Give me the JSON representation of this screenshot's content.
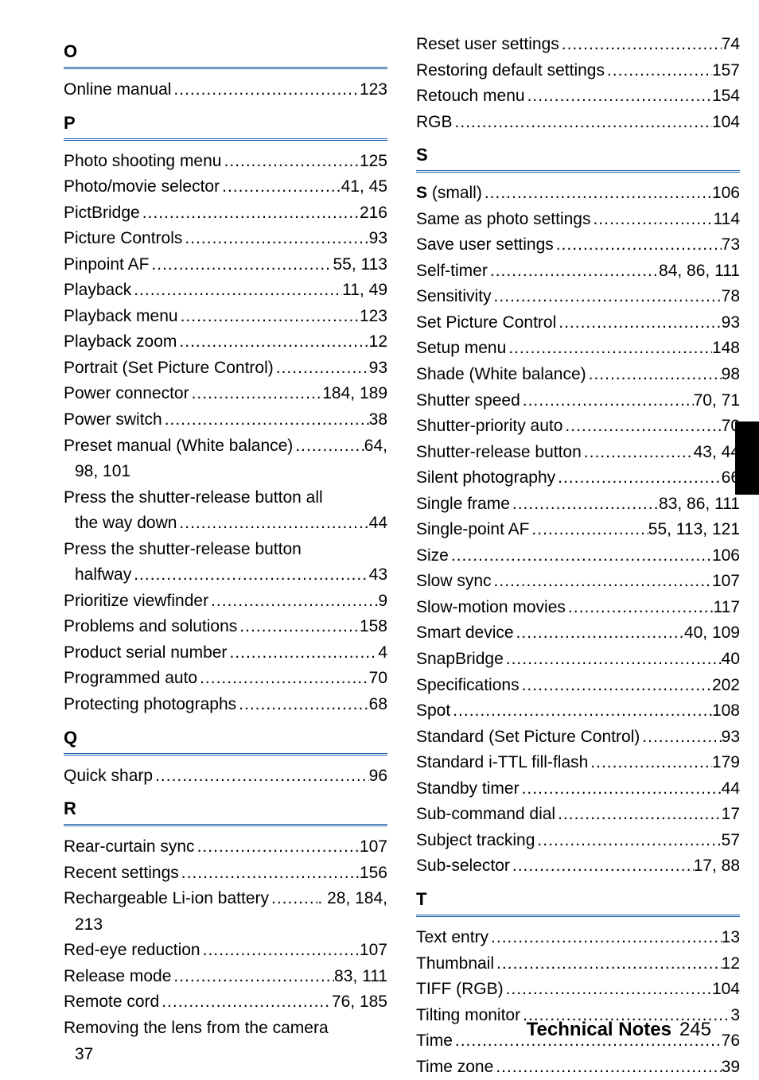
{
  "footer": {
    "title": "Technical Notes",
    "page": "245"
  },
  "left": {
    "sections": [
      {
        "letter": "O",
        "entries": [
          {
            "type": "simple",
            "label": "Online manual",
            "pages": "123"
          }
        ]
      },
      {
        "letter": "P",
        "entries": [
          {
            "type": "simple",
            "label": "Photo shooting menu",
            "pages": "125"
          },
          {
            "type": "simple",
            "label": "Photo/movie selector",
            "pages": "41, 45"
          },
          {
            "type": "simple",
            "label": "PictBridge",
            "pages": "216"
          },
          {
            "type": "simple",
            "label": "Picture Controls",
            "pages": "93"
          },
          {
            "type": "simple",
            "label": "Pinpoint AF",
            "pages": "55, 113"
          },
          {
            "type": "simple",
            "label": "Playback",
            "pages": "11, 49"
          },
          {
            "type": "simple",
            "label": "Playback menu",
            "pages": "123"
          },
          {
            "type": "simple",
            "label": "Playback zoom",
            "pages": "12"
          },
          {
            "type": "simple",
            "label": "Portrait (Set Picture Control)",
            "pages": "93"
          },
          {
            "type": "simple",
            "label": "Power connector",
            "pages": "184, 189"
          },
          {
            "type": "simple",
            "label": "Power switch",
            "pages": "38"
          },
          {
            "type": "multi",
            "label": "Preset manual (White balance)",
            "tail": "64,",
            "continue": "98, 101"
          },
          {
            "type": "noleader",
            "label": "Press the shutter-release button all"
          },
          {
            "type": "simple",
            "label": "the way down",
            "pages": "44",
            "indent": true
          },
          {
            "type": "noleader",
            "label": "Press the shutter-release button"
          },
          {
            "type": "simple",
            "label": "halfway",
            "pages": "43",
            "indent": true
          },
          {
            "type": "simple",
            "label": "Prioritize viewfinder",
            "pages": "9"
          },
          {
            "type": "simple",
            "label": "Problems and solutions",
            "pages": "158"
          },
          {
            "type": "simple",
            "label": "Product serial number",
            "pages": "4"
          },
          {
            "type": "simple",
            "label": "Programmed auto",
            "pages": "70"
          },
          {
            "type": "simple",
            "label": "Protecting photographs",
            "pages": "68"
          }
        ]
      },
      {
        "letter": "Q",
        "entries": [
          {
            "type": "simple",
            "label": "Quick sharp",
            "pages": "96"
          }
        ]
      },
      {
        "letter": "R",
        "entries": [
          {
            "type": "simple",
            "label": "Rear-curtain sync",
            "pages": "107"
          },
          {
            "type": "simple",
            "label": "Recent settings",
            "pages": "156"
          },
          {
            "type": "multi",
            "label": "Rechargeable Li-ion battery",
            "tail": ". 28, 184,",
            "continue": "213"
          },
          {
            "type": "simple",
            "label": "Red-eye reduction",
            "pages": "107"
          },
          {
            "type": "simple",
            "label": "Release mode",
            "pages": "83, 111"
          },
          {
            "type": "simple",
            "label": "Remote cord",
            "pages": "76, 185"
          },
          {
            "type": "noleader",
            "label": "Removing the lens from the camera "
          },
          {
            "type": "noleader",
            "label": "37",
            "indent": true
          }
        ]
      }
    ]
  },
  "right": {
    "preEntries": [
      {
        "type": "simple",
        "label": "Reset user settings",
        "pages": "74"
      },
      {
        "type": "simple",
        "label": "Restoring default settings",
        "pages": "157"
      },
      {
        "type": "simple",
        "label": "Retouch menu",
        "pages": "154"
      },
      {
        "type": "simple",
        "label": "RGB",
        "pages": "104"
      }
    ],
    "sections": [
      {
        "letter": "S",
        "entries": [
          {
            "type": "simple",
            "label_html": "<span class='bold'>S</span> (small)",
            "pages": "106"
          },
          {
            "type": "simple",
            "label": "Same as photo settings",
            "pages": "114"
          },
          {
            "type": "simple",
            "label": "Save user settings",
            "pages": "73"
          },
          {
            "type": "simple",
            "label": "Self-timer",
            "pages": "84, 86, 111"
          },
          {
            "type": "simple",
            "label": "Sensitivity",
            "pages": "78"
          },
          {
            "type": "simple",
            "label": "Set Picture Control",
            "pages": "93"
          },
          {
            "type": "simple",
            "label": "Setup menu",
            "pages": "148"
          },
          {
            "type": "simple",
            "label": "Shade (White balance)",
            "pages": "98"
          },
          {
            "type": "simple",
            "label": "Shutter speed",
            "pages": "70, 71"
          },
          {
            "type": "simple",
            "label": "Shutter-priority auto",
            "pages": "70"
          },
          {
            "type": "simple",
            "label": "Shutter-release button",
            "pages": "43, 44"
          },
          {
            "type": "simple",
            "label": "Silent photography",
            "pages": "66"
          },
          {
            "type": "simple",
            "label": "Single frame",
            "pages": "83, 86, 111"
          },
          {
            "type": "simple",
            "label": "Single-point AF",
            "pages": "55, 113, 121"
          },
          {
            "type": "simple",
            "label": "Size",
            "pages": "106"
          },
          {
            "type": "simple",
            "label": "Slow sync",
            "pages": "107"
          },
          {
            "type": "simple",
            "label": "Slow-motion movies",
            "pages": "117"
          },
          {
            "type": "simple",
            "label": "Smart device",
            "pages": "40, 109"
          },
          {
            "type": "simple",
            "label": "SnapBridge",
            "pages": "40"
          },
          {
            "type": "simple",
            "label": "Specifications",
            "pages": "202"
          },
          {
            "type": "simple",
            "label": "Spot",
            "pages": "108"
          },
          {
            "type": "simple",
            "label": "Standard (Set Picture Control)",
            "pages": "93"
          },
          {
            "type": "simple",
            "label": "Standard i-TTL fill-flash",
            "pages": "179"
          },
          {
            "type": "simple",
            "label": "Standby timer",
            "pages": "44"
          },
          {
            "type": "simple",
            "label": "Sub-command dial",
            "pages": "17"
          },
          {
            "type": "simple",
            "label": "Subject tracking",
            "pages": "57"
          },
          {
            "type": "simple",
            "label": "Sub-selector",
            "pages": "17, 88"
          }
        ]
      },
      {
        "letter": "T",
        "entries": [
          {
            "type": "simple",
            "label": "Text entry",
            "pages": "13"
          },
          {
            "type": "simple",
            "label": "Thumbnail",
            "pages": "12"
          },
          {
            "type": "simple",
            "label": "TIFF (RGB)",
            "pages": "104"
          },
          {
            "type": "simple",
            "label": "Tilting monitor",
            "pages": "3"
          },
          {
            "type": "simple",
            "label": "Time",
            "pages": "76"
          },
          {
            "type": "simple",
            "label": "Time zone",
            "pages": "39"
          }
        ]
      }
    ]
  }
}
